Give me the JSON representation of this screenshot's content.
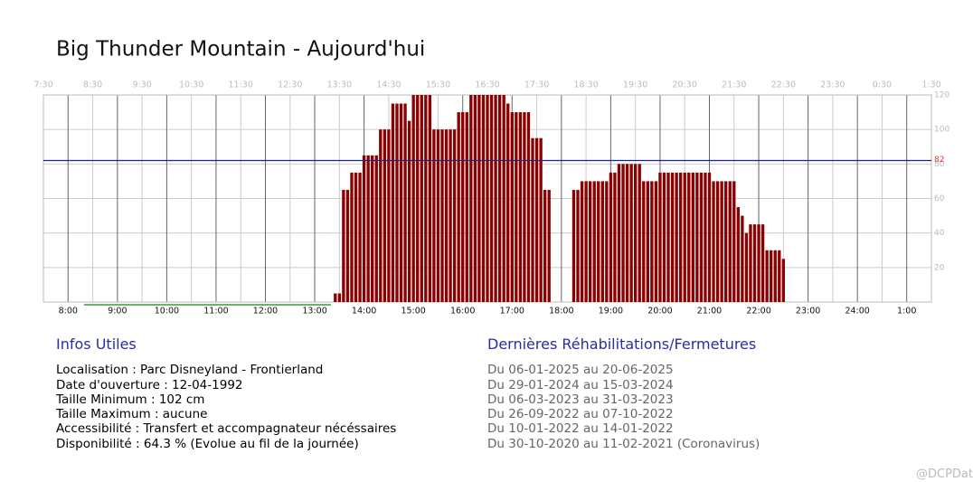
{
  "chart_data": {
    "type": "bar",
    "title": "Big Thunder Mountain - Aujourd'hui",
    "x": [
      "13:25",
      "13:30",
      "13:35",
      "13:40",
      "13:45",
      "13:50",
      "13:55",
      "14:00",
      "14:05",
      "14:10",
      "14:15",
      "14:20",
      "14:25",
      "14:30",
      "14:35",
      "14:40",
      "14:45",
      "14:50",
      "14:55",
      "15:00",
      "15:05",
      "15:10",
      "15:15",
      "15:20",
      "15:25",
      "15:30",
      "15:35",
      "15:40",
      "15:45",
      "15:50",
      "15:55",
      "16:00",
      "16:05",
      "16:10",
      "16:15",
      "16:20",
      "16:25",
      "16:30",
      "16:35",
      "16:40",
      "16:45",
      "16:50",
      "16:55",
      "17:00",
      "17:05",
      "17:10",
      "17:15",
      "17:20",
      "17:25",
      "17:30",
      "17:35",
      "17:40",
      "17:45",
      "17:50",
      "17:55",
      "18:00",
      "18:05",
      "18:10",
      "18:15",
      "18:20",
      "18:25",
      "18:30",
      "18:35",
      "18:40",
      "18:45",
      "18:50",
      "18:55",
      "19:00",
      "19:05",
      "19:10",
      "19:15",
      "19:20",
      "19:25",
      "19:30",
      "19:35",
      "19:40",
      "19:45",
      "19:50",
      "19:55",
      "20:00",
      "20:05",
      "20:10",
      "20:15",
      "20:20",
      "20:25",
      "20:30",
      "20:35",
      "20:40",
      "20:45",
      "20:50",
      "20:55",
      "21:00",
      "21:05",
      "21:10",
      "21:15",
      "21:20",
      "21:25",
      "21:30",
      "21:35",
      "21:40",
      "21:45",
      "21:50",
      "21:55",
      "22:00",
      "22:05",
      "22:10",
      "22:15",
      "22:20",
      "22:25",
      "22:30"
    ],
    "values": [
      5,
      5,
      65,
      65,
      75,
      75,
      75,
      85,
      85,
      85,
      85,
      100,
      100,
      100,
      115,
      115,
      115,
      115,
      105,
      120,
      120,
      120,
      120,
      120,
      100,
      100,
      100,
      100,
      100,
      100,
      110,
      110,
      110,
      120,
      120,
      120,
      120,
      120,
      120,
      120,
      120,
      120,
      115,
      110,
      110,
      110,
      110,
      110,
      95,
      95,
      95,
      65,
      65,
      null,
      null,
      null,
      null,
      null,
      65,
      65,
      70,
      70,
      70,
      70,
      70,
      70,
      70,
      75,
      75,
      80,
      80,
      80,
      80,
      80,
      80,
      70,
      70,
      70,
      70,
      75,
      75,
      75,
      75,
      75,
      75,
      75,
      75,
      75,
      75,
      75,
      75,
      75,
      70,
      70,
      70,
      70,
      70,
      70,
      55,
      50,
      40,
      45,
      45,
      45,
      45,
      30,
      30,
      30,
      30,
      25
    ],
    "color": "#8b0000",
    "xlim": [
      7.5,
      25.5
    ],
    "xticks": [
      {
        "value": 8,
        "label": "8:00"
      },
      {
        "value": 9,
        "label": "9:00"
      },
      {
        "value": 10,
        "label": "10:00"
      },
      {
        "value": 11,
        "label": "11:00"
      },
      {
        "value": 12,
        "label": "12:00"
      },
      {
        "value": 13,
        "label": "13:00"
      },
      {
        "value": 14,
        "label": "14:00"
      },
      {
        "value": 15,
        "label": "15:00"
      },
      {
        "value": 16,
        "label": "16:00"
      },
      {
        "value": 17,
        "label": "17:00"
      },
      {
        "value": 18,
        "label": "18:00"
      },
      {
        "value": 19,
        "label": "19:00"
      },
      {
        "value": 20,
        "label": "20:00"
      },
      {
        "value": 21,
        "label": "21:00"
      },
      {
        "value": 22,
        "label": "22:00"
      },
      {
        "value": 23,
        "label": "23:00"
      },
      {
        "value": 24,
        "label": "24:00"
      },
      {
        "value": 25,
        "label": "1:00"
      }
    ],
    "x2ticks": [
      {
        "value": 7.5,
        "label": "7:30"
      },
      {
        "value": 8.5,
        "label": "8:30"
      },
      {
        "value": 9.5,
        "label": "9:30"
      },
      {
        "value": 10.5,
        "label": "10:30"
      },
      {
        "value": 11.5,
        "label": "11:30"
      },
      {
        "value": 12.5,
        "label": "12:30"
      },
      {
        "value": 13.5,
        "label": "13:30"
      },
      {
        "value": 14.5,
        "label": "14:30"
      },
      {
        "value": 15.5,
        "label": "15:30"
      },
      {
        "value": 16.5,
        "label": "16:30"
      },
      {
        "value": 17.5,
        "label": "17:30"
      },
      {
        "value": 18.5,
        "label": "18:30"
      },
      {
        "value": 19.5,
        "label": "19:30"
      },
      {
        "value": 20.5,
        "label": "20:30"
      },
      {
        "value": 21.5,
        "label": "21:30"
      },
      {
        "value": 22.5,
        "label": "22:30"
      },
      {
        "value": 23.5,
        "label": "23:30"
      },
      {
        "value": 24.5,
        "label": "0:30"
      },
      {
        "value": 25.5,
        "label": "1:30"
      }
    ],
    "ylim": [
      0,
      120
    ],
    "yticks": [
      20,
      40,
      60,
      80,
      100,
      120
    ],
    "reference_line": {
      "value": 82,
      "color": "#1a237e",
      "label_color": "#e53935"
    },
    "grid": true
  },
  "info": {
    "title": "Infos Utiles",
    "lines": [
      "Localisation : Parc Disneyland - Frontierland",
      "Date d'ouverture : 12-04-1992",
      "Taille Minimum : 102 cm",
      "Taille Maximum : aucune",
      "Accessibilité : Transfert et accompagnateur nécéssaires",
      "Disponibilité : 64.3 % (Evolue au fil de la journée)"
    ]
  },
  "rehab": {
    "title": "Dernières Réhabilitations/Fermetures",
    "lines": [
      "Du 06-01-2025 au 20-06-2025",
      "Du 29-01-2024 au 15-03-2024",
      "Du 06-03-2023 au 31-03-2023",
      "Du 26-09-2022 au 07-10-2022",
      "Du 10-01-2022 au 14-01-2022",
      "Du 30-10-2020 au 11-02-2021 (Coronavirus)"
    ]
  },
  "watermark": "@DCPDat"
}
